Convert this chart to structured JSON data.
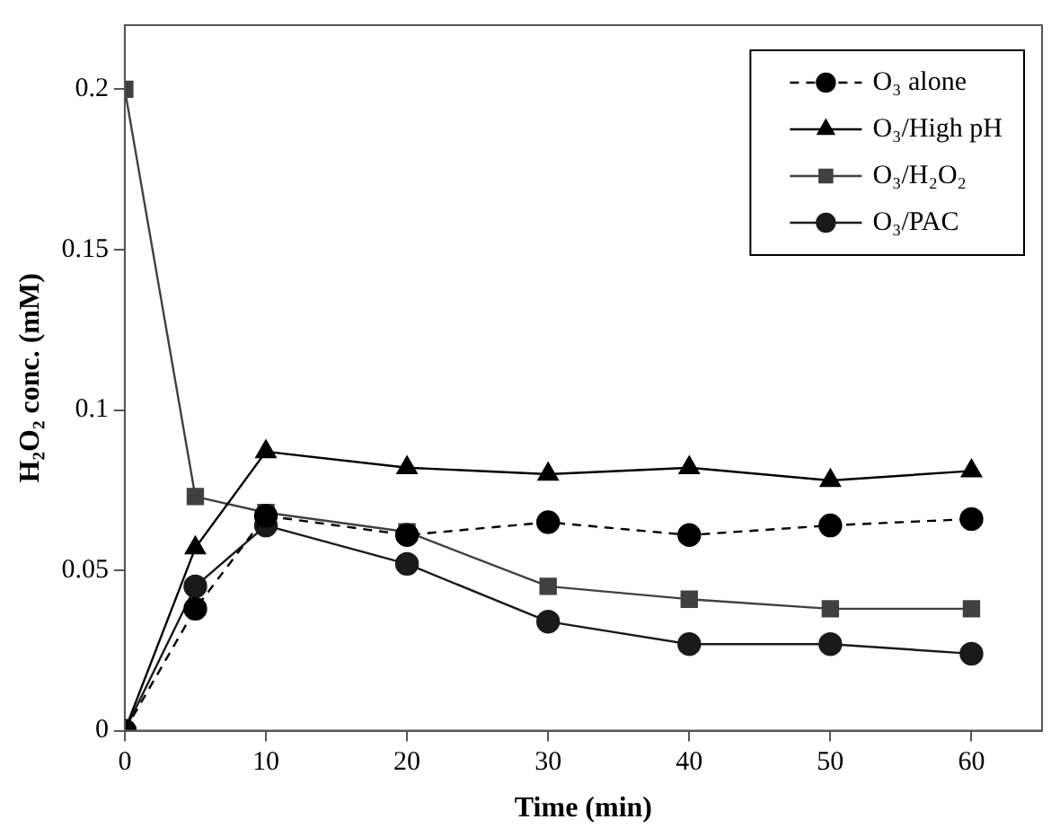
{
  "chart_data": {
    "type": "line",
    "xlabel": "Time (min)",
    "ylabel": "H₂O₂ conc. (mM)",
    "x": [
      0,
      5,
      10,
      20,
      30,
      40,
      50,
      60
    ],
    "xlim": [
      0,
      65
    ],
    "xticks": [
      0,
      10,
      20,
      30,
      40,
      50,
      60
    ],
    "ylim": [
      0,
      0.22
    ],
    "yticks": [
      0,
      0.05,
      0.1,
      0.15,
      0.2
    ],
    "grid": false,
    "legend": "top right",
    "series": [
      {
        "name": "O₃ alone",
        "color": "#000000",
        "marker": "circle",
        "line_style": "dashed",
        "values": [
          0,
          0.038,
          0.067,
          0.061,
          0.065,
          0.061,
          0.064,
          0.066
        ]
      },
      {
        "name": "O₃/High pH",
        "color": "#000000",
        "marker": "triangle",
        "line_style": "solid",
        "values": [
          0,
          0.057,
          0.087,
          0.082,
          0.08,
          0.082,
          0.078,
          0.081
        ]
      },
      {
        "name": "O₃/H₂O₂",
        "color": "#404040",
        "marker": "square",
        "line_style": "solid",
        "values": [
          0.2,
          0.073,
          0.068,
          0.062,
          0.045,
          0.041,
          0.038,
          0.038
        ]
      },
      {
        "name": "O₃/PAC",
        "color": "#1a1a1a",
        "marker": "circle",
        "line_style": "solid",
        "values": [
          0,
          0.045,
          0.064,
          0.052,
          0.034,
          0.027,
          0.027,
          0.024
        ]
      }
    ]
  }
}
